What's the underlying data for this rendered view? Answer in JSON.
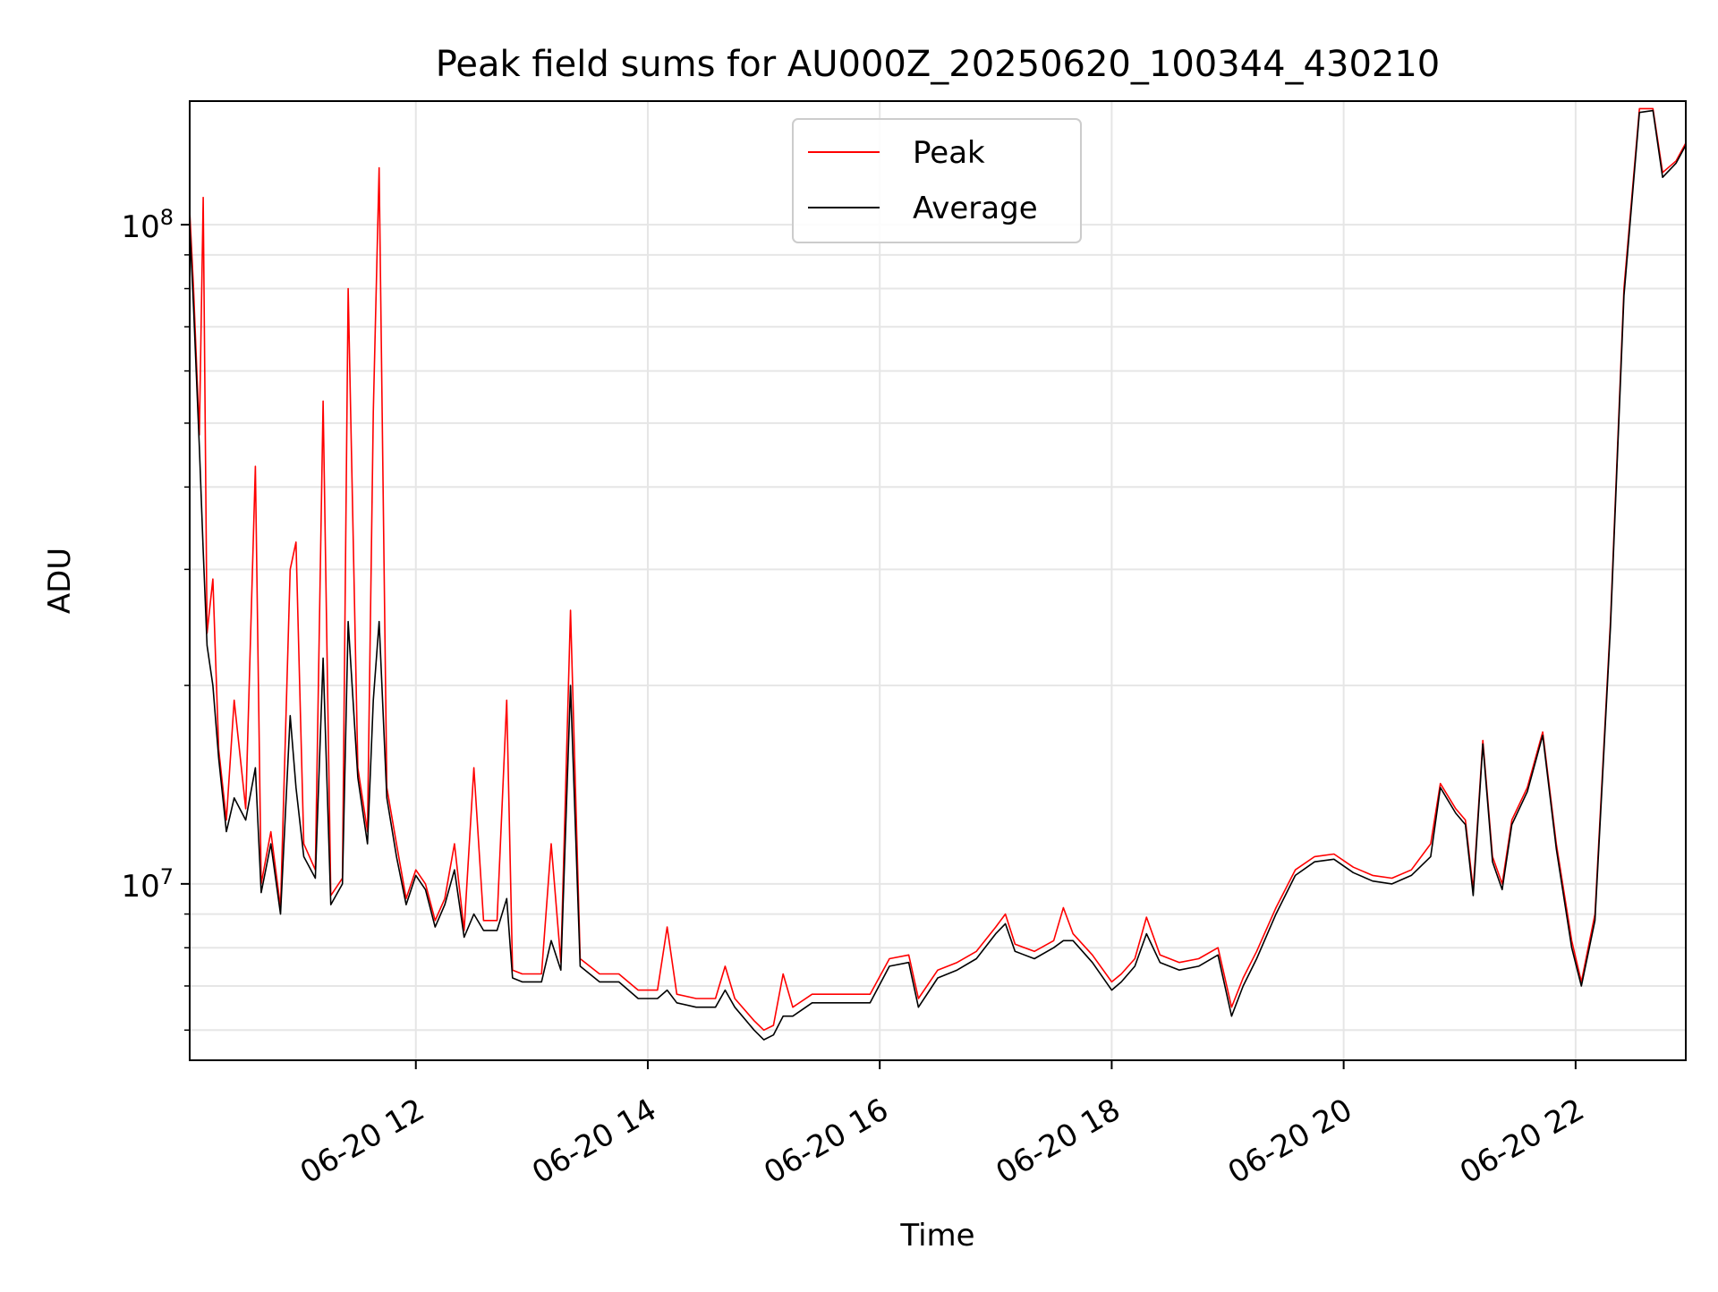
{
  "chart_data": {
    "type": "line",
    "title": "Peak field sums for AU000Z_20250620_100344_430210",
    "xlabel": "Time",
    "ylabel": "ADU",
    "xlim": [
      "2025-06-20 10:03",
      "2025-06-20 22:57"
    ],
    "ylim": [
      5400000,
      154000000
    ],
    "yscale": "log",
    "grid": true,
    "legend_position": "top-center",
    "x_tick_labels": [
      "06-20 12",
      "06-20 14",
      "06-20 16",
      "06-20 18",
      "06-20 20",
      "06-20 22"
    ],
    "x_ticks": [
      "2025-06-20 12:00",
      "2025-06-20 14:00",
      "2025-06-20 16:00",
      "2025-06-20 18:00",
      "2025-06-20 20:00",
      "2025-06-20 22:00"
    ],
    "y_major_ticks": [
      10000000,
      100000000
    ],
    "y_major_tick_labels": [
      {
        "base": "10",
        "exp": "7"
      },
      {
        "base": "10",
        "exp": "8"
      }
    ],
    "y_minor_ticks": [
      6000000,
      7000000,
      8000000,
      9000000,
      20000000,
      30000000,
      40000000,
      50000000,
      60000000,
      70000000,
      80000000,
      90000000
    ],
    "series": [
      {
        "name": "Peak",
        "color": "#ff0000",
        "points": [
          [
            "2025-06-20 10:03",
            105000000
          ],
          [
            "2025-06-20 10:05",
            80000000
          ],
          [
            "2025-06-20 10:08",
            48000000
          ],
          [
            "2025-06-20 10:10",
            110000000
          ],
          [
            "2025-06-20 10:12",
            24000000
          ],
          [
            "2025-06-20 10:15",
            29000000
          ],
          [
            "2025-06-20 10:18",
            16000000
          ],
          [
            "2025-06-20 10:22",
            12500000
          ],
          [
            "2025-06-20 10:26",
            19000000
          ],
          [
            "2025-06-20 10:32",
            13000000
          ],
          [
            "2025-06-20 10:37",
            43000000
          ],
          [
            "2025-06-20 10:40",
            10000000
          ],
          [
            "2025-06-20 10:45",
            12000000
          ],
          [
            "2025-06-20 10:50",
            9200000
          ],
          [
            "2025-06-20 10:55",
            30000000
          ],
          [
            "2025-06-20 10:58",
            33000000
          ],
          [
            "2025-06-20 11:02",
            11500000
          ],
          [
            "2025-06-20 11:08",
            10500000
          ],
          [
            "2025-06-20 11:12",
            54000000
          ],
          [
            "2025-06-20 11:16",
            9600000
          ],
          [
            "2025-06-20 11:22",
            10200000
          ],
          [
            "2025-06-20 11:25",
            80000000
          ],
          [
            "2025-06-20 11:30",
            15000000
          ],
          [
            "2025-06-20 11:35",
            12000000
          ],
          [
            "2025-06-20 11:38",
            52000000
          ],
          [
            "2025-06-20 11:41",
            122000000
          ],
          [
            "2025-06-20 11:45",
            14000000
          ],
          [
            "2025-06-20 11:50",
            11500000
          ],
          [
            "2025-06-20 11:55",
            9500000
          ],
          [
            "2025-06-20 12:00",
            10500000
          ],
          [
            "2025-06-20 12:05",
            10000000
          ],
          [
            "2025-06-20 12:10",
            8800000
          ],
          [
            "2025-06-20 12:15",
            9500000
          ],
          [
            "2025-06-20 12:20",
            11500000
          ],
          [
            "2025-06-20 12:25",
            8500000
          ],
          [
            "2025-06-20 12:30",
            15000000
          ],
          [
            "2025-06-20 12:35",
            8800000
          ],
          [
            "2025-06-20 12:42",
            8800000
          ],
          [
            "2025-06-20 12:47",
            19000000
          ],
          [
            "2025-06-20 12:50",
            7400000
          ],
          [
            "2025-06-20 12:55",
            7300000
          ],
          [
            "2025-06-20 13:05",
            7300000
          ],
          [
            "2025-06-20 13:10",
            11500000
          ],
          [
            "2025-06-20 13:15",
            7600000
          ],
          [
            "2025-06-20 13:20",
            26000000
          ],
          [
            "2025-06-20 13:25",
            7700000
          ],
          [
            "2025-06-20 13:35",
            7300000
          ],
          [
            "2025-06-20 13:45",
            7300000
          ],
          [
            "2025-06-20 13:55",
            6900000
          ],
          [
            "2025-06-20 14:05",
            6900000
          ],
          [
            "2025-06-20 14:10",
            8600000
          ],
          [
            "2025-06-20 14:15",
            6800000
          ],
          [
            "2025-06-20 14:25",
            6700000
          ],
          [
            "2025-06-20 14:35",
            6700000
          ],
          [
            "2025-06-20 14:40",
            7500000
          ],
          [
            "2025-06-20 14:45",
            6700000
          ],
          [
            "2025-06-20 14:55",
            6200000
          ],
          [
            "2025-06-20 15:00",
            6000000
          ],
          [
            "2025-06-20 15:05",
            6100000
          ],
          [
            "2025-06-20 15:10",
            7300000
          ],
          [
            "2025-06-20 15:15",
            6500000
          ],
          [
            "2025-06-20 15:25",
            6800000
          ],
          [
            "2025-06-20 15:35",
            6800000
          ],
          [
            "2025-06-20 15:45",
            6800000
          ],
          [
            "2025-06-20 15:55",
            6800000
          ],
          [
            "2025-06-20 16:05",
            7700000
          ],
          [
            "2025-06-20 16:15",
            7800000
          ],
          [
            "2025-06-20 16:20",
            6700000
          ],
          [
            "2025-06-20 16:30",
            7400000
          ],
          [
            "2025-06-20 16:40",
            7600000
          ],
          [
            "2025-06-20 16:50",
            7900000
          ],
          [
            "2025-06-20 17:00",
            8600000
          ],
          [
            "2025-06-20 17:05",
            9000000
          ],
          [
            "2025-06-20 17:10",
            8100000
          ],
          [
            "2025-06-20 17:20",
            7900000
          ],
          [
            "2025-06-20 17:30",
            8200000
          ],
          [
            "2025-06-20 17:35",
            9200000
          ],
          [
            "2025-06-20 17:40",
            8400000
          ],
          [
            "2025-06-20 17:50",
            7800000
          ],
          [
            "2025-06-20 18:00",
            7100000
          ],
          [
            "2025-06-20 18:05",
            7300000
          ],
          [
            "2025-06-20 18:12",
            7700000
          ],
          [
            "2025-06-20 18:18",
            8900000
          ],
          [
            "2025-06-20 18:25",
            7800000
          ],
          [
            "2025-06-20 18:35",
            7600000
          ],
          [
            "2025-06-20 18:45",
            7700000
          ],
          [
            "2025-06-20 18:55",
            8000000
          ],
          [
            "2025-06-20 19:02",
            6500000
          ],
          [
            "2025-06-20 19:08",
            7200000
          ],
          [
            "2025-06-20 19:15",
            7900000
          ],
          [
            "2025-06-20 19:25",
            9200000
          ],
          [
            "2025-06-20 19:35",
            10500000
          ],
          [
            "2025-06-20 19:45",
            11000000
          ],
          [
            "2025-06-20 19:55",
            11100000
          ],
          [
            "2025-06-20 20:05",
            10600000
          ],
          [
            "2025-06-20 20:15",
            10300000
          ],
          [
            "2025-06-20 20:25",
            10200000
          ],
          [
            "2025-06-20 20:35",
            10500000
          ],
          [
            "2025-06-20 20:45",
            11500000
          ],
          [
            "2025-06-20 20:50",
            14200000
          ],
          [
            "2025-06-20 20:58",
            13000000
          ],
          [
            "2025-06-20 21:03",
            12500000
          ],
          [
            "2025-06-20 21:07",
            9800000
          ],
          [
            "2025-06-20 21:12",
            16500000
          ],
          [
            "2025-06-20 21:17",
            11000000
          ],
          [
            "2025-06-20 21:22",
            10000000
          ],
          [
            "2025-06-20 21:27",
            12500000
          ],
          [
            "2025-06-20 21:35",
            14000000
          ],
          [
            "2025-06-20 21:43",
            17000000
          ],
          [
            "2025-06-20 21:50",
            11500000
          ],
          [
            "2025-06-20 21:58",
            8200000
          ],
          [
            "2025-06-20 22:03",
            7100000
          ],
          [
            "2025-06-20 22:10",
            9000000
          ],
          [
            "2025-06-20 22:18",
            25000000
          ],
          [
            "2025-06-20 22:25",
            80000000
          ],
          [
            "2025-06-20 22:33",
            150000000
          ],
          [
            "2025-06-20 22:40",
            150000000
          ],
          [
            "2025-06-20 22:45",
            120000000
          ],
          [
            "2025-06-20 22:52",
            125000000
          ],
          [
            "2025-06-20 22:57",
            133000000
          ]
        ]
      },
      {
        "name": "Average",
        "color": "#000000",
        "points": [
          [
            "2025-06-20 10:03",
            100000000
          ],
          [
            "2025-06-20 10:05",
            75000000
          ],
          [
            "2025-06-20 10:08",
            46000000
          ],
          [
            "2025-06-20 10:10",
            32000000
          ],
          [
            "2025-06-20 10:12",
            23000000
          ],
          [
            "2025-06-20 10:15",
            20000000
          ],
          [
            "2025-06-20 10:18",
            15500000
          ],
          [
            "2025-06-20 10:22",
            12000000
          ],
          [
            "2025-06-20 10:26",
            13500000
          ],
          [
            "2025-06-20 10:32",
            12500000
          ],
          [
            "2025-06-20 10:37",
            15000000
          ],
          [
            "2025-06-20 10:40",
            9700000
          ],
          [
            "2025-06-20 10:45",
            11500000
          ],
          [
            "2025-06-20 10:50",
            9000000
          ],
          [
            "2025-06-20 10:55",
            18000000
          ],
          [
            "2025-06-20 10:58",
            14000000
          ],
          [
            "2025-06-20 11:02",
            11000000
          ],
          [
            "2025-06-20 11:08",
            10200000
          ],
          [
            "2025-06-20 11:12",
            22000000
          ],
          [
            "2025-06-20 11:16",
            9300000
          ],
          [
            "2025-06-20 11:22",
            10000000
          ],
          [
            "2025-06-20 11:25",
            25000000
          ],
          [
            "2025-06-20 11:30",
            14500000
          ],
          [
            "2025-06-20 11:35",
            11500000
          ],
          [
            "2025-06-20 11:38",
            19000000
          ],
          [
            "2025-06-20 11:41",
            25000000
          ],
          [
            "2025-06-20 11:45",
            13500000
          ],
          [
            "2025-06-20 11:50",
            11000000
          ],
          [
            "2025-06-20 11:55",
            9300000
          ],
          [
            "2025-06-20 12:00",
            10300000
          ],
          [
            "2025-06-20 12:05",
            9800000
          ],
          [
            "2025-06-20 12:10",
            8600000
          ],
          [
            "2025-06-20 12:15",
            9300000
          ],
          [
            "2025-06-20 12:20",
            10500000
          ],
          [
            "2025-06-20 12:25",
            8300000
          ],
          [
            "2025-06-20 12:30",
            9000000
          ],
          [
            "2025-06-20 12:35",
            8500000
          ],
          [
            "2025-06-20 12:42",
            8500000
          ],
          [
            "2025-06-20 12:47",
            9500000
          ],
          [
            "2025-06-20 12:50",
            7200000
          ],
          [
            "2025-06-20 12:55",
            7100000
          ],
          [
            "2025-06-20 13:05",
            7100000
          ],
          [
            "2025-06-20 13:10",
            8200000
          ],
          [
            "2025-06-20 13:15",
            7400000
          ],
          [
            "2025-06-20 13:20",
            20000000
          ],
          [
            "2025-06-20 13:25",
            7500000
          ],
          [
            "2025-06-20 13:35",
            7100000
          ],
          [
            "2025-06-20 13:45",
            7100000
          ],
          [
            "2025-06-20 13:55",
            6700000
          ],
          [
            "2025-06-20 14:05",
            6700000
          ],
          [
            "2025-06-20 14:10",
            6900000
          ],
          [
            "2025-06-20 14:15",
            6600000
          ],
          [
            "2025-06-20 14:25",
            6500000
          ],
          [
            "2025-06-20 14:35",
            6500000
          ],
          [
            "2025-06-20 14:40",
            6900000
          ],
          [
            "2025-06-20 14:45",
            6500000
          ],
          [
            "2025-06-20 14:55",
            6000000
          ],
          [
            "2025-06-20 15:00",
            5800000
          ],
          [
            "2025-06-20 15:05",
            5900000
          ],
          [
            "2025-06-20 15:10",
            6300000
          ],
          [
            "2025-06-20 15:15",
            6300000
          ],
          [
            "2025-06-20 15:25",
            6600000
          ],
          [
            "2025-06-20 15:35",
            6600000
          ],
          [
            "2025-06-20 15:45",
            6600000
          ],
          [
            "2025-06-20 15:55",
            6600000
          ],
          [
            "2025-06-20 16:05",
            7500000
          ],
          [
            "2025-06-20 16:15",
            7600000
          ],
          [
            "2025-06-20 16:20",
            6500000
          ],
          [
            "2025-06-20 16:30",
            7200000
          ],
          [
            "2025-06-20 16:40",
            7400000
          ],
          [
            "2025-06-20 16:50",
            7700000
          ],
          [
            "2025-06-20 17:00",
            8400000
          ],
          [
            "2025-06-20 17:05",
            8700000
          ],
          [
            "2025-06-20 17:10",
            7900000
          ],
          [
            "2025-06-20 17:20",
            7700000
          ],
          [
            "2025-06-20 17:30",
            8000000
          ],
          [
            "2025-06-20 17:35",
            8200000
          ],
          [
            "2025-06-20 17:40",
            8200000
          ],
          [
            "2025-06-20 17:50",
            7600000
          ],
          [
            "2025-06-20 18:00",
            6900000
          ],
          [
            "2025-06-20 18:05",
            7100000
          ],
          [
            "2025-06-20 18:12",
            7500000
          ],
          [
            "2025-06-20 18:18",
            8400000
          ],
          [
            "2025-06-20 18:25",
            7600000
          ],
          [
            "2025-06-20 18:35",
            7400000
          ],
          [
            "2025-06-20 18:45",
            7500000
          ],
          [
            "2025-06-20 18:55",
            7800000
          ],
          [
            "2025-06-20 19:02",
            6300000
          ],
          [
            "2025-06-20 19:08",
            7000000
          ],
          [
            "2025-06-20 19:15",
            7700000
          ],
          [
            "2025-06-20 19:25",
            9000000
          ],
          [
            "2025-06-20 19:35",
            10300000
          ],
          [
            "2025-06-20 19:45",
            10800000
          ],
          [
            "2025-06-20 19:55",
            10900000
          ],
          [
            "2025-06-20 20:05",
            10400000
          ],
          [
            "2025-06-20 20:15",
            10100000
          ],
          [
            "2025-06-20 20:25",
            10000000
          ],
          [
            "2025-06-20 20:35",
            10300000
          ],
          [
            "2025-06-20 20:45",
            11000000
          ],
          [
            "2025-06-20 20:50",
            14000000
          ],
          [
            "2025-06-20 20:58",
            12800000
          ],
          [
            "2025-06-20 21:03",
            12300000
          ],
          [
            "2025-06-20 21:07",
            9600000
          ],
          [
            "2025-06-20 21:12",
            16300000
          ],
          [
            "2025-06-20 21:17",
            10800000
          ],
          [
            "2025-06-20 21:22",
            9800000
          ],
          [
            "2025-06-20 21:27",
            12300000
          ],
          [
            "2025-06-20 21:35",
            13800000
          ],
          [
            "2025-06-20 21:43",
            16800000
          ],
          [
            "2025-06-20 21:50",
            11300000
          ],
          [
            "2025-06-20 21:58",
            8000000
          ],
          [
            "2025-06-20 22:03",
            7000000
          ],
          [
            "2025-06-20 22:10",
            8800000
          ],
          [
            "2025-06-20 22:18",
            24500000
          ],
          [
            "2025-06-20 22:25",
            78000000
          ],
          [
            "2025-06-20 22:33",
            148000000
          ],
          [
            "2025-06-20 22:40",
            149000000
          ],
          [
            "2025-06-20 22:45",
            118000000
          ],
          [
            "2025-06-20 22:52",
            124000000
          ],
          [
            "2025-06-20 22:57",
            132000000
          ]
        ]
      }
    ]
  }
}
